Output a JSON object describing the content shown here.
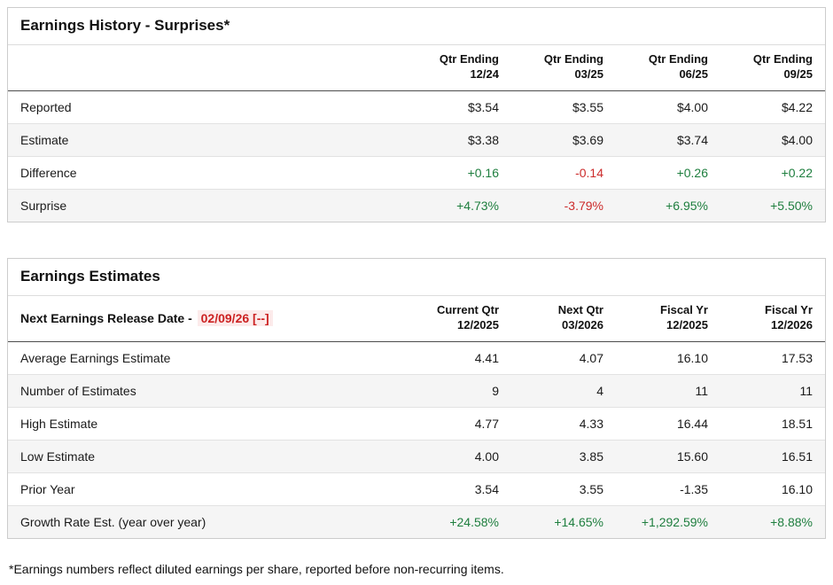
{
  "colors": {
    "positive": "#1e7e3e",
    "negative": "#cc2b2b",
    "release_date": "#cc2222"
  },
  "history": {
    "title": "Earnings History - Surprises*",
    "headers": [
      {
        "l1": "Qtr Ending",
        "l2": "12/24"
      },
      {
        "l1": "Qtr Ending",
        "l2": "03/25"
      },
      {
        "l1": "Qtr Ending",
        "l2": "06/25"
      },
      {
        "l1": "Qtr Ending",
        "l2": "09/25"
      }
    ],
    "rows": [
      {
        "label": "Reported",
        "values": [
          "$3.54",
          "$3.55",
          "$4.00",
          "$4.22"
        ]
      },
      {
        "label": "Estimate",
        "values": [
          "$3.38",
          "$3.69",
          "$3.74",
          "$4.00"
        ]
      },
      {
        "label": "Difference",
        "values": [
          "+0.16",
          "-0.14",
          "+0.26",
          "+0.22"
        ]
      },
      {
        "label": "Surprise",
        "values": [
          "+4.73%",
          "-3.79%",
          "+6.95%",
          "+5.50%"
        ]
      }
    ]
  },
  "estimates": {
    "title": "Earnings Estimates",
    "release_label": "Next Earnings Release Date -",
    "release_date": "02/09/26 [--]",
    "headers": [
      {
        "l1": "Current Qtr",
        "l2": "12/2025"
      },
      {
        "l1": "Next Qtr",
        "l2": "03/2026"
      },
      {
        "l1": "Fiscal Yr",
        "l2": "12/2025"
      },
      {
        "l1": "Fiscal Yr",
        "l2": "12/2026"
      }
    ],
    "rows": [
      {
        "label": "Average Earnings Estimate",
        "values": [
          "4.41",
          "4.07",
          "16.10",
          "17.53"
        ]
      },
      {
        "label": "Number of Estimates",
        "values": [
          "9",
          "4",
          "11",
          "11"
        ]
      },
      {
        "label": "High Estimate",
        "values": [
          "4.77",
          "4.33",
          "16.44",
          "18.51"
        ]
      },
      {
        "label": "Low Estimate",
        "values": [
          "4.00",
          "3.85",
          "15.60",
          "16.51"
        ]
      },
      {
        "label": "Prior Year",
        "values": [
          "3.54",
          "3.55",
          "-1.35",
          "16.10"
        ]
      },
      {
        "label": "Growth Rate Est. (year over year)",
        "values": [
          "+24.58%",
          "+14.65%",
          "+1,292.59%",
          "+8.88%"
        ]
      }
    ]
  },
  "footnote": "*Earnings numbers reflect diluted earnings per share, reported before non-recurring items."
}
